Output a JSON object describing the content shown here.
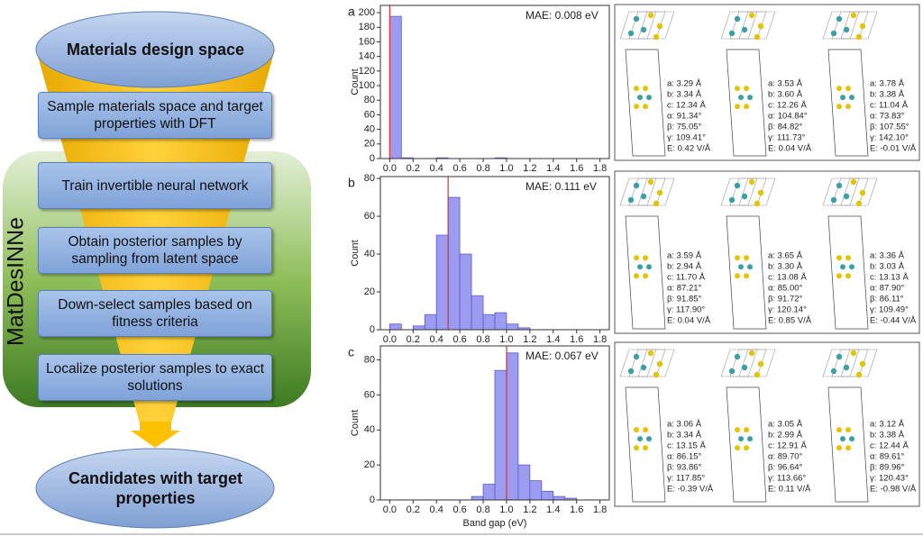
{
  "flowchart": {
    "top": "Materials design space",
    "steps": [
      "Sample materials space and target properties with DFT",
      "Train invertible neural network",
      "Obtain posterior samples by sampling from latent space",
      "Down-select samples based on fitness criteria",
      "Localize posterior samples to exact solutions"
    ],
    "side_label": "MatDesINNe",
    "bottom": "Candidates with target properties"
  },
  "chart_data": [
    {
      "type": "histogram",
      "panel_label": "a",
      "annotation": "MAE: 0.008 eV",
      "y_label": "Count",
      "color": "#9b9bf0",
      "edge_color": "#5a5ad0",
      "bins": [
        0,
        0.1,
        0.2,
        0.3,
        0.4,
        0.5,
        0.6,
        0.7,
        0.8,
        0.9,
        1.0
      ],
      "values": [
        195,
        1,
        0,
        0,
        1,
        0,
        0,
        0,
        0,
        1
      ],
      "reference_x": 0,
      "reference_color": "#e03030",
      "xlim": [
        -0.08,
        1.88
      ],
      "xticks": [
        {
          "value": 0,
          "label": "0.0"
        },
        {
          "value": 0.2,
          "label": "0.2"
        },
        {
          "value": 0.4,
          "label": "0.4"
        },
        {
          "value": 0.6,
          "label": "0.6"
        },
        {
          "value": 0.8,
          "label": "0.8"
        },
        {
          "value": 1,
          "label": "1.0"
        },
        {
          "value": 1.2,
          "label": "1.2"
        },
        {
          "value": 1.4,
          "label": "1.4"
        },
        {
          "value": 1.6,
          "label": "1.6"
        },
        {
          "value": 1.8,
          "label": "1.8"
        }
      ],
      "ylim": [
        0,
        210
      ],
      "yticks": [
        0,
        20,
        40,
        60,
        80,
        100,
        120,
        140,
        160,
        180,
        200
      ]
    },
    {
      "type": "histogram",
      "panel_label": "b",
      "annotation": "MAE: 0.111 eV",
      "y_label": "Count",
      "color": "#9b9bf0",
      "edge_color": "#5a5ad0",
      "bins": [
        0,
        0.1,
        0.2,
        0.3,
        0.4,
        0.5,
        0.6,
        0.7,
        0.8,
        0.9,
        1.0,
        1.1,
        1.2
      ],
      "values": [
        3,
        0,
        2,
        8,
        50,
        70,
        40,
        18,
        8,
        9,
        3,
        1
      ],
      "reference_x": 0.5,
      "reference_color": "#e03030",
      "xlim": [
        -0.08,
        1.88
      ],
      "xticks": [
        {
          "value": 0,
          "label": "0.0"
        },
        {
          "value": 0.2,
          "label": "0.2"
        },
        {
          "value": 0.4,
          "label": "0.4"
        },
        {
          "value": 0.6,
          "label": "0.6"
        },
        {
          "value": 0.8,
          "label": "0.8"
        },
        {
          "value": 1,
          "label": "1.0"
        },
        {
          "value": 1.2,
          "label": "1.2"
        },
        {
          "value": 1.4,
          "label": "1.4"
        },
        {
          "value": 1.6,
          "label": "1.6"
        },
        {
          "value": 1.8,
          "label": "1.8"
        }
      ],
      "ylim": [
        0,
        81
      ],
      "yticks": [
        0,
        20,
        40,
        60,
        80
      ]
    },
    {
      "type": "histogram",
      "panel_label": "c",
      "annotation": "MAE: 0.067 eV",
      "y_label": "Count",
      "x_label": "Band gap (eV)",
      "color": "#9b9bf0",
      "edge_color": "#5a5ad0",
      "bins": [
        0.7,
        0.8,
        0.9,
        1.0,
        1.1,
        1.2,
        1.3,
        1.4,
        1.5,
        1.6
      ],
      "values": [
        2,
        9,
        74,
        84,
        20,
        11,
        5,
        2,
        1
      ],
      "reference_x": 1,
      "reference_color": "#e03030",
      "xlim": [
        -0.08,
        1.88
      ],
      "xticks": [
        {
          "value": 0,
          "label": "0.0"
        },
        {
          "value": 0.2,
          "label": "0.2"
        },
        {
          "value": 0.4,
          "label": "0.4"
        },
        {
          "value": 0.6,
          "label": "0.6"
        },
        {
          "value": 0.8,
          "label": "0.8"
        },
        {
          "value": 1,
          "label": "1.0"
        },
        {
          "value": 1.2,
          "label": "1.2"
        },
        {
          "value": 1.4,
          "label": "1.4"
        },
        {
          "value": 1.6,
          "label": "1.6"
        },
        {
          "value": 1.8,
          "label": "1.8"
        }
      ],
      "ylim": [
        0,
        88
      ],
      "yticks": [
        0,
        20,
        40,
        60,
        80
      ]
    }
  ],
  "structures": [
    [
      [
        "a: 3.29 Å",
        "b: 3.34 Å",
        "c: 12.34 Å",
        "α: 91.34°",
        "β: 75.05°",
        "γ: 109.41°",
        "E: 0.42 V/Å"
      ],
      [
        "a: 3.53 Å",
        "b: 3.60 Å",
        "c: 12.26 Å",
        "α: 104.84°",
        "β: 84.82°",
        "γ: 111.73°",
        "E: 0.04 V/Å"
      ],
      [
        "a: 3.78 Å",
        "b: 3.38 Å",
        "c: 11.04 Å",
        "α: 73.83°",
        "β: 107.55°",
        "γ: 142.10°",
        "E: -0.01 V/Å"
      ]
    ],
    [
      [
        "a: 3.59 Å",
        "b: 2.94 Å",
        "c: 11.70 Å",
        "α: 87.21°",
        "β: 91.85°",
        "γ: 117.90°",
        "E: 0.04 V/Å"
      ],
      [
        "a: 3.65 Å",
        "b: 3.30 Å",
        "c: 13.08 Å",
        "α: 85.00°",
        "β: 91.72°",
        "γ: 120.14°",
        "E: 0.85 V/Å"
      ],
      [
        "a: 3.36 Å",
        "b: 3.03 Å",
        "c: 13.13 Å",
        "α: 87.90°",
        "β: 86.11°",
        "γ: 109.49°",
        "E: -0.44 V/Å"
      ]
    ],
    [
      [
        "a: 3.06 Å",
        "b: 3.34 Å",
        "c: 13.15 Å",
        "α: 86.15°",
        "β: 93.86°",
        "γ: 117.85°",
        "E: -0.39 V/Å"
      ],
      [
        "a: 3.05 Å",
        "b: 2.99 Å",
        "c: 12.91 Å",
        "α: 89.70°",
        "β: 96.64°",
        "γ: 113.66°",
        "E: 0.11 V/Å"
      ],
      [
        "a: 3.12 Å",
        "b: 3.38 Å",
        "c: 12.44 Å",
        "α: 89.61°",
        "β: 89.96°",
        "γ: 120.43°",
        "E: -0.98 V/Å"
      ]
    ]
  ]
}
